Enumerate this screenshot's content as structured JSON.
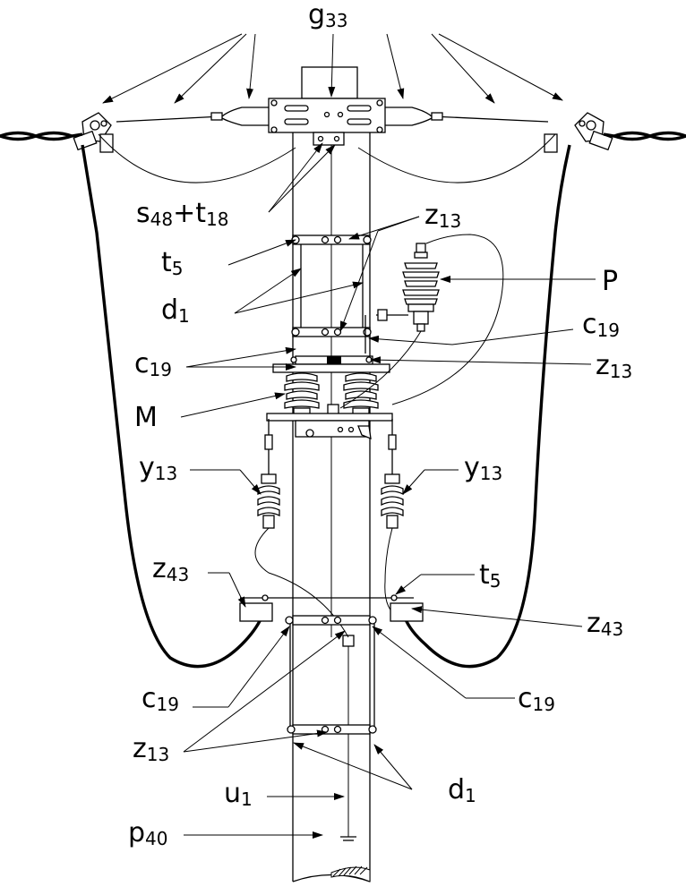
{
  "labels": {
    "g33": {
      "base": "g",
      "sub": "33"
    },
    "s48": {
      "base": "s",
      "sub": "48"
    },
    "plus": "+",
    "t18": {
      "base": "t",
      "sub": "18"
    },
    "z13_top": {
      "base": "z",
      "sub": "13"
    },
    "t5_left": {
      "base": "t",
      "sub": "5"
    },
    "P": "P",
    "d1_upper": {
      "base": "d",
      "sub": "1"
    },
    "c19_right": {
      "base": "c",
      "sub": "19"
    },
    "c19_left": {
      "base": "c",
      "sub": "19"
    },
    "z13_right": {
      "base": "z",
      "sub": "13"
    },
    "M": "M",
    "y13_left": {
      "base": "y",
      "sub": "13"
    },
    "y13_right": {
      "base": "y",
      "sub": "13"
    },
    "z43_left": {
      "base": "z",
      "sub": "43"
    },
    "t5_right": {
      "base": "t",
      "sub": "5"
    },
    "z43_right": {
      "base": "z",
      "sub": "43"
    },
    "c19_lower_left": {
      "base": "c",
      "sub": "19"
    },
    "c19_lower_right": {
      "base": "c",
      "sub": "19"
    },
    "z13_bottom": {
      "base": "z",
      "sub": "13"
    },
    "u1": {
      "base": "u",
      "sub": "1"
    },
    "d1_lower": {
      "base": "d",
      "sub": "1"
    },
    "p40": {
      "base": "p",
      "sub": "40"
    }
  }
}
